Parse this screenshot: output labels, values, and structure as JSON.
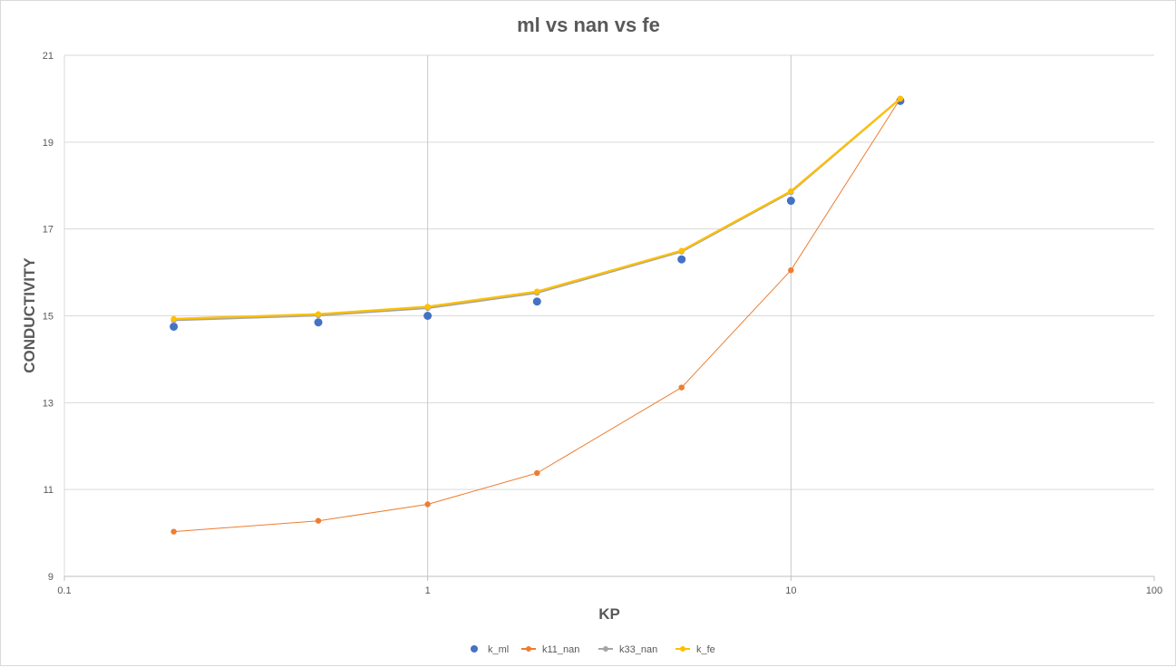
{
  "chart_data": {
    "type": "scatter",
    "title": "ml vs nan vs fe",
    "xlabel": "KP",
    "ylabel": "CONDUCTIVITY",
    "xscale": "log",
    "xlim": [
      0.1,
      100
    ],
    "ylim": [
      9,
      21
    ],
    "xticks": [
      "0.1",
      "1",
      "10",
      "100"
    ],
    "yticks": [
      "9",
      "11",
      "13",
      "15",
      "17",
      "19",
      "21"
    ],
    "grid": "horizontal major gridlines; vertical gridlines at 1 and 10",
    "legend_position": "bottom",
    "series": [
      {
        "name": "k_ml",
        "style": "markers",
        "color": "#4472C4",
        "x": [
          0.2,
          0.5,
          1,
          2,
          5,
          10,
          20
        ],
        "y": [
          14.75,
          14.85,
          15.0,
          15.33,
          16.3,
          17.65,
          19.95
        ]
      },
      {
        "name": "k11_nan",
        "style": "line-markers",
        "color": "#ED7D31",
        "x": [
          0.2,
          0.5,
          1,
          2,
          5,
          10,
          20
        ],
        "y": [
          10.03,
          10.28,
          10.66,
          11.38,
          13.35,
          16.05,
          20.0
        ]
      },
      {
        "name": "k33_nan",
        "style": "line-markers",
        "color": "#A5A5A5",
        "x": [
          0.2,
          0.5,
          1,
          2,
          5,
          10,
          20
        ],
        "y": [
          14.9,
          15.01,
          15.18,
          15.53,
          16.48,
          17.85,
          20.0
        ]
      },
      {
        "name": "k_fe",
        "style": "line-markers",
        "color": "#FFC000",
        "x": [
          0.2,
          0.5,
          1,
          2,
          5,
          10,
          20
        ],
        "y": [
          14.93,
          15.04,
          15.21,
          15.56,
          16.5,
          17.87,
          20.0
        ]
      }
    ]
  }
}
